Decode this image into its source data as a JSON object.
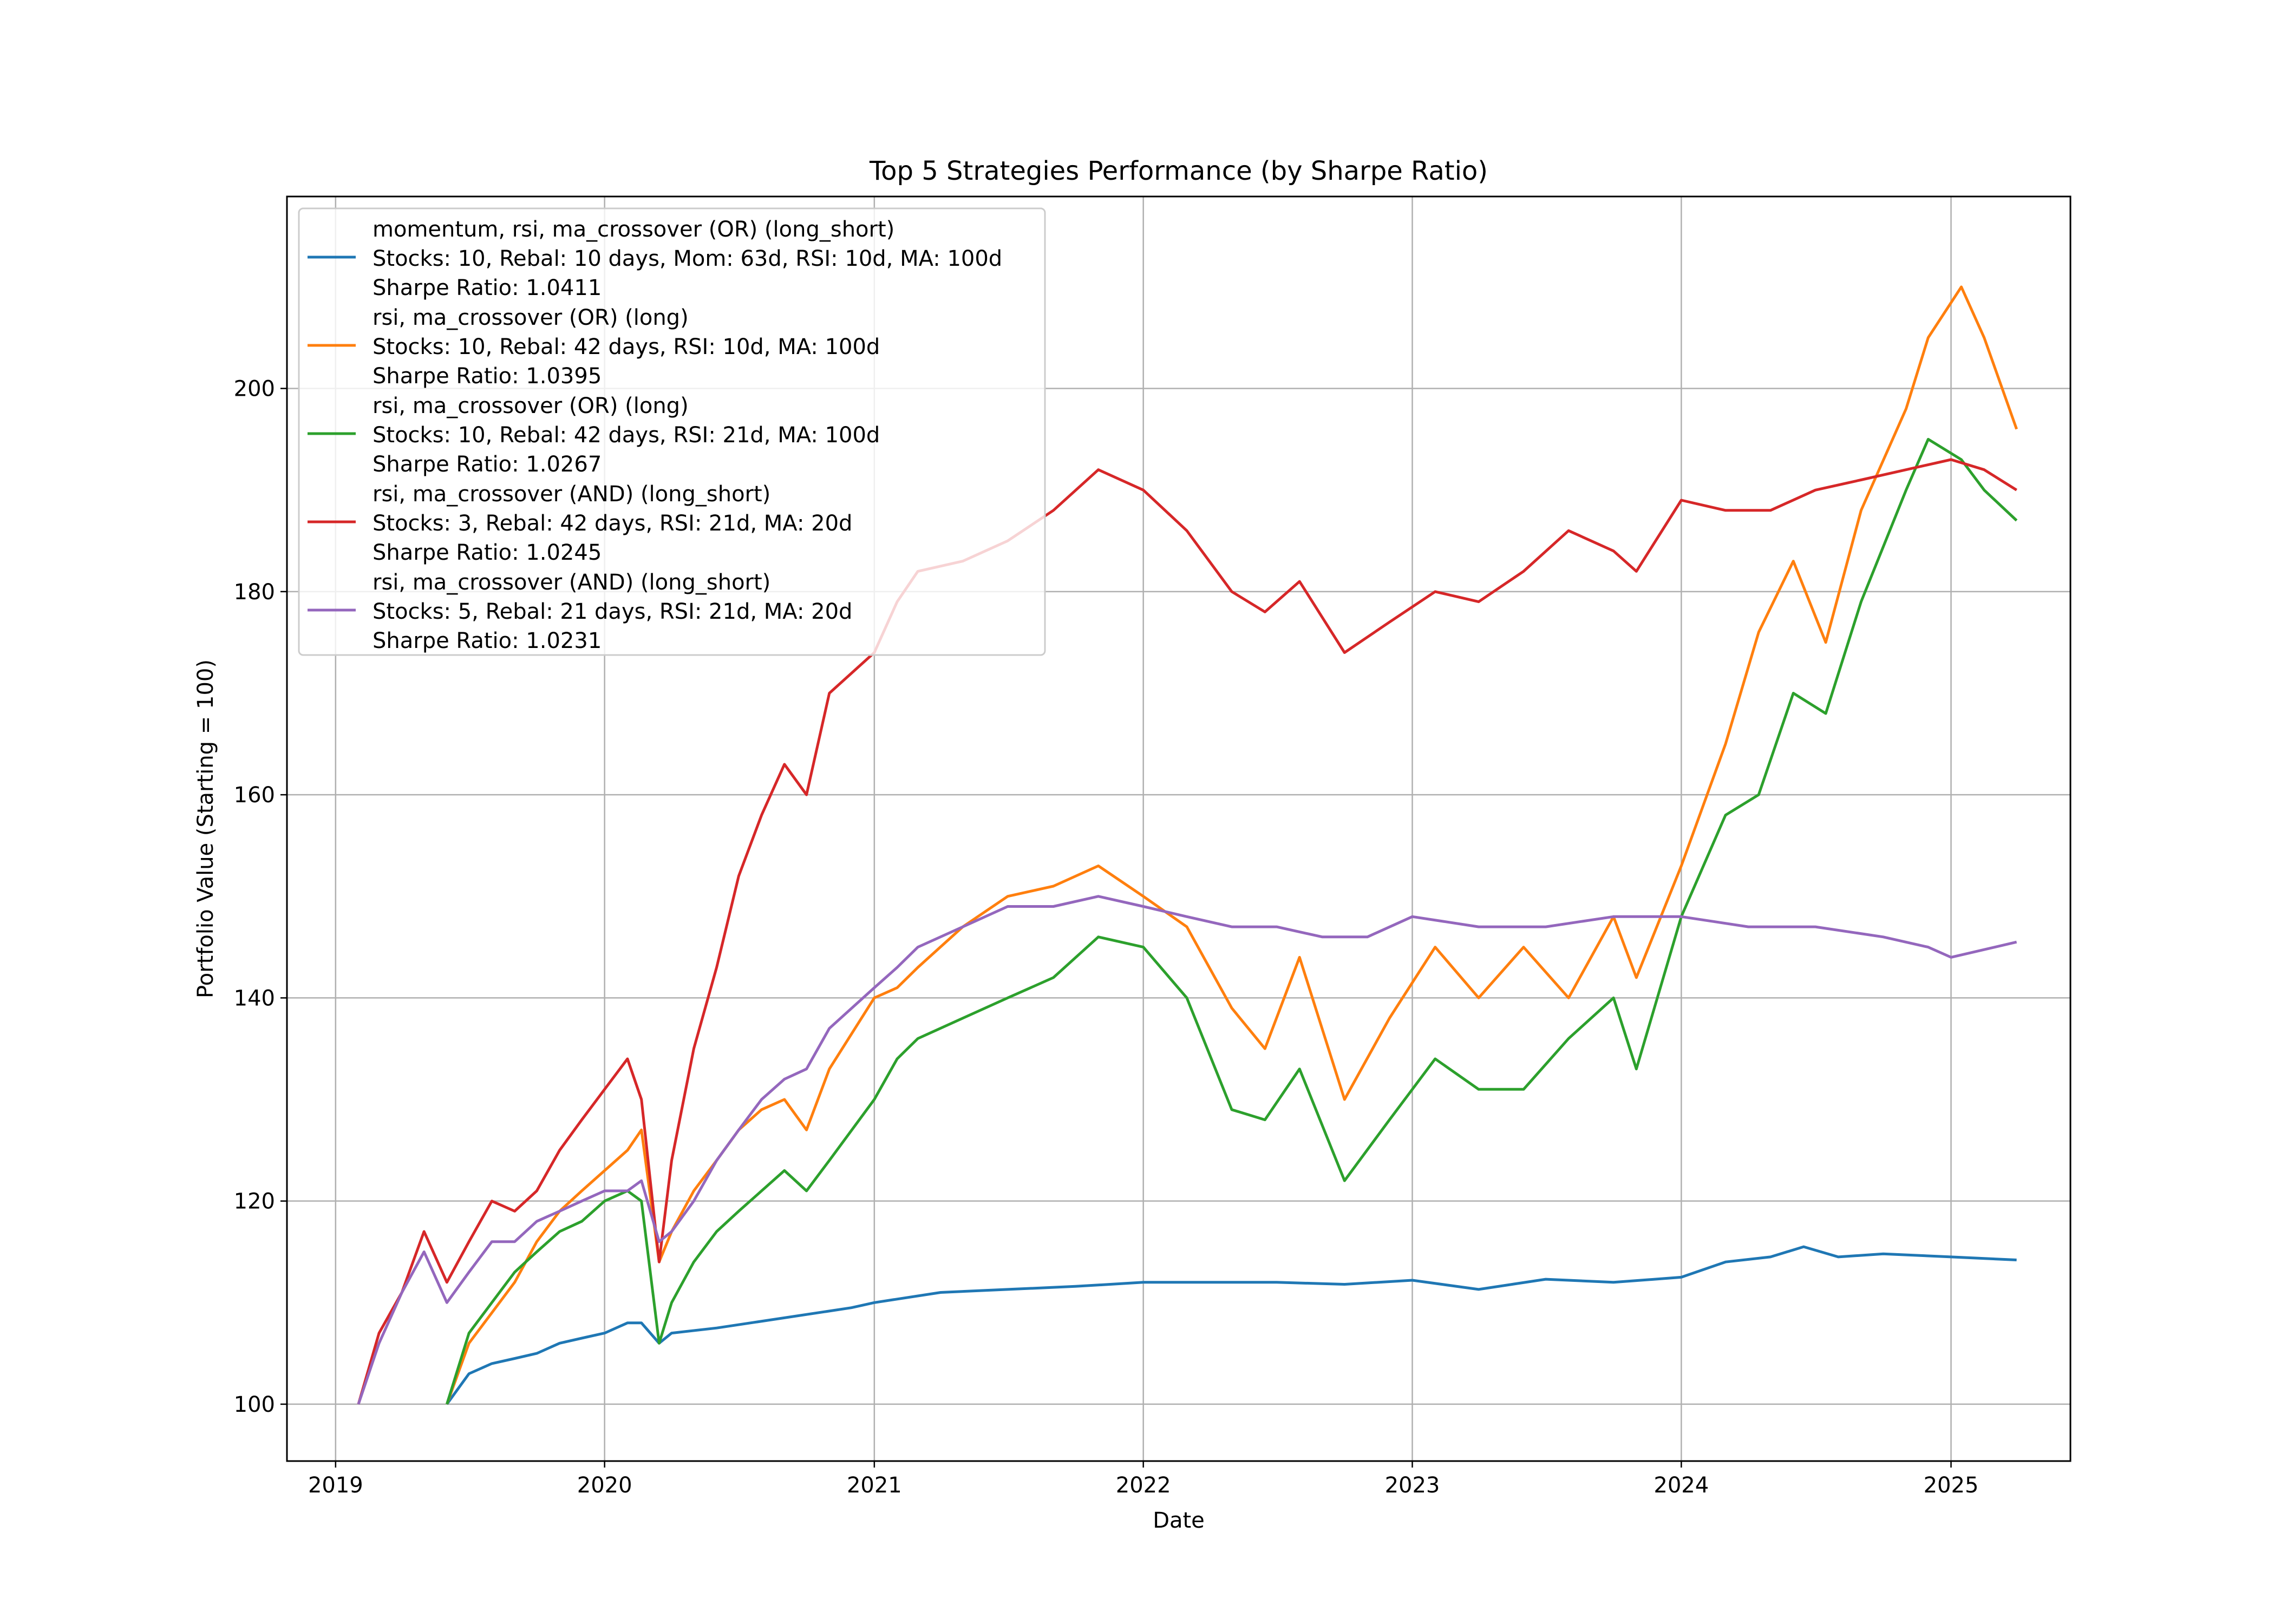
{
  "chart_data": {
    "type": "line",
    "title": "Top 5 Strategies Performance (by Sharpe Ratio)",
    "xlabel": "Date",
    "ylabel": "Portfolio Value (Starting = 100)",
    "xlim": [
      "2018-10-27",
      "2025-06-12"
    ],
    "ylim": [
      94.4,
      218.9
    ],
    "x_ticks": [
      "2019",
      "2020",
      "2021",
      "2022",
      "2023",
      "2024",
      "2025"
    ],
    "y_ticks": [
      100,
      120,
      140,
      160,
      180,
      200
    ],
    "grid": true,
    "legend_position": "upper-left",
    "series": [
      {
        "name": "momentum, rsi, ma_crossover (OR) (long_short)\nStocks: 10, Rebal: 10 days, Mom: 63d, RSI: 10d, MA: 100d\nSharpe Ratio: 1.0411",
        "color": "#1f77b4",
        "x": [
          "2019-06-01",
          "2019-07-01",
          "2019-08-01",
          "2019-09-01",
          "2019-10-01",
          "2019-11-01",
          "2019-12-01",
          "2020-01-01",
          "2020-02-01",
          "2020-02-20",
          "2020-03-15",
          "2020-04-01",
          "2020-06-01",
          "2020-09-01",
          "2020-12-01",
          "2021-01-01",
          "2021-04-01",
          "2021-07-01",
          "2021-10-01",
          "2022-01-01",
          "2022-04-01",
          "2022-07-01",
          "2022-10-01",
          "2023-01-01",
          "2023-04-01",
          "2023-07-01",
          "2023-10-01",
          "2024-01-01",
          "2024-03-01",
          "2024-05-01",
          "2024-06-15",
          "2024-08-01",
          "2024-10-01",
          "2025-01-01",
          "2025-03-31"
        ],
        "values": [
          100,
          103,
          104,
          104.5,
          105,
          106,
          106.5,
          107,
          108,
          108,
          106,
          107,
          107.5,
          108.5,
          109.5,
          110,
          111,
          111.3,
          111.6,
          112,
          112,
          112,
          111.8,
          112.2,
          111.3,
          112.3,
          112,
          112.5,
          114,
          114.5,
          115.5,
          114.5,
          114.8,
          114.5,
          114.2
        ]
      },
      {
        "name": "rsi, ma_crossover (OR) (long)\nStocks: 10, Rebal: 42 days, RSI: 10d, MA: 100d\nSharpe Ratio: 1.0395",
        "color": "#ff7f0e",
        "x": [
          "2019-06-01",
          "2019-07-01",
          "2019-08-01",
          "2019-09-01",
          "2019-10-01",
          "2019-11-01",
          "2019-12-01",
          "2020-01-01",
          "2020-02-01",
          "2020-02-20",
          "2020-03-15",
          "2020-04-01",
          "2020-05-01",
          "2020-06-01",
          "2020-07-01",
          "2020-08-01",
          "2020-09-01",
          "2020-10-01",
          "2020-11-01",
          "2021-01-01",
          "2021-02-01",
          "2021-03-01",
          "2021-05-01",
          "2021-07-01",
          "2021-09-01",
          "2021-11-01",
          "2022-01-01",
          "2022-03-01",
          "2022-05-01",
          "2022-06-15",
          "2022-08-01",
          "2022-10-01",
          "2022-12-01",
          "2023-02-01",
          "2023-04-01",
          "2023-06-01",
          "2023-08-01",
          "2023-10-01",
          "2023-11-01",
          "2024-01-01",
          "2024-03-01",
          "2024-04-15",
          "2024-06-01",
          "2024-07-15",
          "2024-09-01",
          "2024-11-01",
          "2024-12-01",
          "2025-01-15",
          "2025-02-15",
          "2025-03-31"
        ],
        "values": [
          100,
          106,
          109,
          112,
          116,
          119,
          121,
          123,
          125,
          127,
          114,
          117,
          121,
          124,
          127,
          129,
          130,
          127,
          133,
          140,
          141,
          143,
          147,
          150,
          151,
          153,
          150,
          147,
          139,
          135,
          144,
          130,
          138,
          145,
          140,
          145,
          140,
          148,
          142,
          153,
          165,
          176,
          183,
          175,
          188,
          198,
          205,
          210,
          205,
          196
        ]
      },
      {
        "name": "rsi, ma_crossover (OR) (long)\nStocks: 10, Rebal: 42 days, RSI: 21d, MA: 100d\nSharpe Ratio: 1.0267",
        "color": "#2ca02c",
        "x": [
          "2019-06-01",
          "2019-07-01",
          "2019-08-01",
          "2019-09-01",
          "2019-10-01",
          "2019-11-01",
          "2019-12-01",
          "2020-01-01",
          "2020-02-01",
          "2020-02-20",
          "2020-03-15",
          "2020-04-01",
          "2020-05-01",
          "2020-06-01",
          "2020-07-01",
          "2020-08-01",
          "2020-09-01",
          "2020-10-01",
          "2020-11-01",
          "2021-01-01",
          "2021-02-01",
          "2021-03-01",
          "2021-05-01",
          "2021-07-01",
          "2021-09-01",
          "2021-11-01",
          "2022-01-01",
          "2022-03-01",
          "2022-05-01",
          "2022-06-15",
          "2022-08-01",
          "2022-10-01",
          "2022-12-01",
          "2023-02-01",
          "2023-04-01",
          "2023-06-01",
          "2023-08-01",
          "2023-10-01",
          "2023-11-01",
          "2024-01-01",
          "2024-03-01",
          "2024-04-15",
          "2024-06-01",
          "2024-07-15",
          "2024-09-01",
          "2024-11-01",
          "2024-12-01",
          "2025-01-15",
          "2025-02-15",
          "2025-03-31"
        ],
        "values": [
          100,
          107,
          110,
          113,
          115,
          117,
          118,
          120,
          121,
          120,
          106,
          110,
          114,
          117,
          119,
          121,
          123,
          121,
          124,
          130,
          134,
          136,
          138,
          140,
          142,
          146,
          145,
          140,
          129,
          128,
          133,
          122,
          128,
          134,
          131,
          131,
          136,
          140,
          133,
          148,
          158,
          160,
          170,
          168,
          179,
          190,
          195,
          193,
          190,
          187
        ]
      },
      {
        "name": "rsi, ma_crossover (AND) (long_short)\nStocks: 3, Rebal: 42 days, RSI: 21d, MA: 20d\nSharpe Ratio: 1.0245",
        "color": "#d62728",
        "x": [
          "2019-02-01",
          "2019-03-01",
          "2019-04-01",
          "2019-05-01",
          "2019-06-01",
          "2019-07-01",
          "2019-08-01",
          "2019-09-01",
          "2019-10-01",
          "2019-11-01",
          "2019-12-01",
          "2020-01-01",
          "2020-02-01",
          "2020-02-20",
          "2020-03-15",
          "2020-04-01",
          "2020-05-01",
          "2020-06-01",
          "2020-07-01",
          "2020-08-01",
          "2020-09-01",
          "2020-10-01",
          "2020-11-01",
          "2021-01-01",
          "2021-02-01",
          "2021-03-01",
          "2021-05-01",
          "2021-07-01",
          "2021-09-01",
          "2021-11-01",
          "2022-01-01",
          "2022-03-01",
          "2022-05-01",
          "2022-06-15",
          "2022-08-01",
          "2022-10-01",
          "2022-12-01",
          "2023-02-01",
          "2023-04-01",
          "2023-06-01",
          "2023-08-01",
          "2023-10-01",
          "2023-11-01",
          "2024-01-01",
          "2024-03-01",
          "2024-05-01",
          "2024-07-01",
          "2024-09-01",
          "2024-11-01",
          "2025-01-01",
          "2025-02-15",
          "2025-03-31"
        ],
        "values": [
          100,
          107,
          111,
          117,
          112,
          116,
          120,
          119,
          121,
          125,
          128,
          131,
          134,
          130,
          114,
          124,
          135,
          143,
          152,
          158,
          163,
          160,
          170,
          174,
          179,
          182,
          183,
          185,
          188,
          192,
          190,
          186,
          180,
          178,
          181,
          174,
          177,
          180,
          179,
          182,
          186,
          184,
          182,
          189,
          188,
          188,
          190,
          191,
          192,
          193,
          192,
          190
        ]
      },
      {
        "name": "rsi, ma_crossover (AND) (long_short)\nStocks: 5, Rebal: 21 days, RSI: 21d, MA: 20d\nSharpe Ratio: 1.0231",
        "color": "#9467bd",
        "x": [
          "2019-02-01",
          "2019-03-01",
          "2019-04-01",
          "2019-05-01",
          "2019-06-01",
          "2019-07-01",
          "2019-08-01",
          "2019-09-01",
          "2019-10-01",
          "2019-11-01",
          "2019-12-01",
          "2020-01-01",
          "2020-02-01",
          "2020-02-20",
          "2020-03-15",
          "2020-04-01",
          "2020-05-01",
          "2020-06-01",
          "2020-07-01",
          "2020-08-01",
          "2020-09-01",
          "2020-10-01",
          "2020-11-01",
          "2021-01-01",
          "2021-02-01",
          "2021-03-01",
          "2021-05-01",
          "2021-07-01",
          "2021-09-01",
          "2021-11-01",
          "2022-01-01",
          "2022-03-01",
          "2022-05-01",
          "2022-07-01",
          "2022-09-01",
          "2022-11-01",
          "2023-01-01",
          "2023-04-01",
          "2023-07-01",
          "2023-10-01",
          "2024-01-01",
          "2024-04-01",
          "2024-07-01",
          "2024-10-01",
          "2024-12-01",
          "2025-01-01",
          "2025-03-31"
        ],
        "values": [
          100,
          106,
          111,
          115,
          110,
          113,
          116,
          116,
          118,
          119,
          120,
          121,
          121,
          122,
          116,
          117,
          120,
          124,
          127,
          130,
          132,
          133,
          137,
          141,
          143,
          145,
          147,
          149,
          149,
          150,
          149,
          148,
          147,
          147,
          146,
          146,
          148,
          147,
          147,
          148,
          148,
          147,
          147,
          146,
          145,
          144,
          145.5
        ]
      }
    ]
  }
}
